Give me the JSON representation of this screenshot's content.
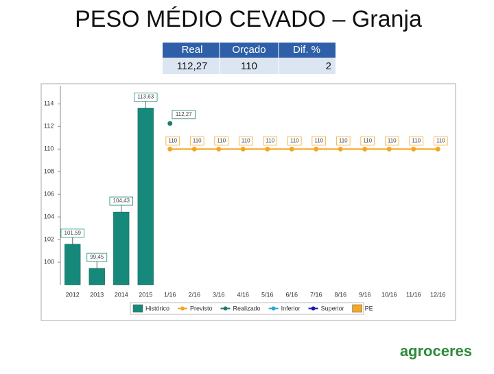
{
  "header": {
    "title": "PESO MÉDIO CEVADO – Granja"
  },
  "table": {
    "header": [
      "Real",
      "Orçado",
      "Dif. %"
    ],
    "rows": [
      [
        "112,27",
        "110",
        "2"
      ]
    ]
  },
  "logo": "agroceres",
  "chart_data": {
    "type": "bar",
    "categories": [
      "2012",
      "2013",
      "2014",
      "2015",
      "1/16",
      "2/16",
      "3/16",
      "4/16",
      "5/16",
      "6/16",
      "7/16",
      "8/16",
      "9/16",
      "10/16",
      "11/16",
      "12/16"
    ],
    "series": [
      {
        "name": "Histórico",
        "type": "bar",
        "color": "#17897b",
        "values": [
          101.59,
          99.45,
          104.43,
          113.63,
          null,
          null,
          null,
          null,
          null,
          null,
          null,
          null,
          null,
          null,
          null,
          null
        ],
        "value_labels": [
          "101,59",
          "99,45",
          "104,43",
          "113,63",
          null,
          null,
          null,
          null,
          null,
          null,
          null,
          null,
          null,
          null,
          null,
          null
        ]
      },
      {
        "name": "Previsto",
        "type": "line",
        "color": "#f5a623",
        "values": [
          null,
          null,
          null,
          null,
          110,
          110,
          110,
          110,
          110,
          110,
          110,
          110,
          110,
          110,
          110,
          110
        ]
      },
      {
        "name": "Realizado",
        "type": "line",
        "color": "#1f7a6c",
        "values": [
          null,
          null,
          null,
          null,
          112.27,
          null,
          null,
          null,
          null,
          null,
          null,
          null,
          null,
          null,
          null,
          null
        ],
        "value_labels": [
          null,
          null,
          null,
          null,
          "112,27",
          null,
          null,
          null,
          null,
          null,
          null,
          null,
          null,
          null,
          null,
          null
        ]
      },
      {
        "name": "Inferior",
        "type": "line",
        "color": "#2aa6d9",
        "values": [
          null,
          null,
          null,
          null,
          null,
          null,
          null,
          null,
          null,
          null,
          null,
          null,
          null,
          null,
          null,
          null
        ]
      },
      {
        "name": "Superior",
        "type": "line",
        "color": "#1a1aa6",
        "values": [
          null,
          null,
          null,
          null,
          null,
          null,
          null,
          null,
          null,
          null,
          null,
          null,
          null,
          null,
          null,
          null
        ]
      },
      {
        "name": "PE",
        "type": "bar",
        "color": "#f5a623",
        "values": [
          null,
          null,
          null,
          null,
          null,
          null,
          null,
          null,
          null,
          null,
          null,
          null,
          null,
          null,
          null,
          null
        ]
      }
    ],
    "ylim": [
      98,
      115.6
    ],
    "yticks": [
      100,
      102,
      104,
      106,
      108,
      110,
      112,
      114
    ],
    "grid": false
  }
}
